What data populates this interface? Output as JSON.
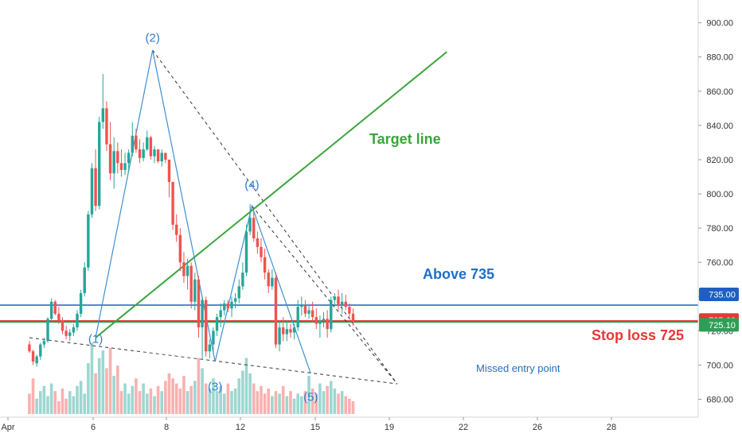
{
  "chart_data": {
    "type": "candlestick",
    "title": "",
    "price_axis": {
      "ticks": [
        "900.00",
        "880.00",
        "860.00",
        "840.00",
        "820.00",
        "800.00",
        "780.00",
        "760.00",
        "740.00",
        "720.00",
        "700.00",
        "680.00"
      ],
      "range": [
        674,
        907
      ]
    },
    "time_axis": {
      "labels": [
        "Apr",
        "6",
        "8",
        "12",
        "15",
        "19",
        "22",
        "26",
        "28"
      ]
    },
    "price_badges": [
      {
        "value": "735.00",
        "color": "#1f5fbf"
      },
      {
        "value": "725.60",
        "color": "#e53935"
      },
      {
        "value": "725.10",
        "color": "#2e9e57"
      }
    ],
    "horizontal_lines": [
      {
        "price": 735.0,
        "color": "#1565c0"
      },
      {
        "price": 725.6,
        "color": "#e53935"
      },
      {
        "price": 725.1,
        "color": "#2e9e57"
      }
    ],
    "wave_labels": [
      {
        "text": "(1)",
        "x": 9,
        "y": 713
      },
      {
        "text": "(2)",
        "x": 24.5,
        "y": 889
      },
      {
        "text": "(3)",
        "x": 41.5,
        "y": 685
      },
      {
        "text": "(4)",
        "x": 51.5,
        "y": 803
      },
      {
        "text": "(5)",
        "x": 67.5,
        "y": 679
      }
    ],
    "wave_path": [
      {
        "x": 9,
        "y": 716
      },
      {
        "x": 24.5,
        "y": 884
      },
      {
        "x": 41.5,
        "y": 702
      },
      {
        "x": 51.5,
        "y": 793
      },
      {
        "x": 67.5,
        "y": 695
      }
    ],
    "annotations": [
      {
        "text": "Target line",
        "color": "#3aa53a"
      },
      {
        "text": "Above 735",
        "color": "#1f6fc4"
      },
      {
        "text": "Stop loss 725",
        "color": "#e53935"
      },
      {
        "text": "Missed entry point",
        "color": "#1f6fc4"
      }
    ],
    "target_line": {
      "x1": 9,
      "y1": 716,
      "x2": 104.5,
      "y2": 883,
      "color": "#3aa53a"
    },
    "trend_lines": [
      {
        "x1": 24.5,
        "y1": 884,
        "x2": 91,
        "y2": 689
      },
      {
        "x1": -9,
        "y1": 716,
        "x2": 91,
        "y2": 689
      }
    ],
    "candles": [
      [
        -9,
        712,
        714,
        707,
        708
      ],
      [
        -8,
        708,
        709,
        700,
        702
      ],
      [
        -7,
        701,
        706,
        699,
        705
      ],
      [
        -6,
        705,
        713,
        703,
        712
      ],
      [
        -5,
        712,
        716,
        710,
        714
      ],
      [
        -4,
        714,
        728,
        713,
        727
      ],
      [
        -3,
        727,
        739,
        725,
        737
      ],
      [
        -2,
        737,
        738,
        729,
        730
      ],
      [
        -1,
        730,
        734,
        724,
        726
      ],
      [
        0,
        726,
        728,
        718,
        720
      ],
      [
        1,
        720,
        723,
        715,
        717
      ],
      [
        2,
        717,
        721,
        714,
        719
      ],
      [
        3,
        719,
        724,
        717,
        722
      ],
      [
        4,
        722,
        732,
        720,
        730
      ],
      [
        5,
        730,
        744,
        728,
        742
      ],
      [
        6,
        742,
        760,
        740,
        757
      ],
      [
        7,
        757,
        790,
        755,
        788
      ],
      [
        8,
        788,
        818,
        786,
        815
      ],
      [
        9,
        815,
        826,
        790,
        793
      ],
      [
        10,
        793,
        845,
        791,
        842
      ],
      [
        11,
        842,
        870,
        838,
        850
      ],
      [
        12,
        850,
        854,
        825,
        829
      ],
      [
        13,
        829,
        842,
        808,
        812
      ],
      [
        14,
        812,
        833,
        803,
        825
      ],
      [
        15,
        825,
        830,
        812,
        818
      ],
      [
        16,
        818,
        826,
        810,
        814
      ],
      [
        17,
        814,
        824,
        811,
        818
      ],
      [
        18,
        818,
        826,
        813,
        824
      ],
      [
        19,
        824,
        842,
        822,
        834
      ],
      [
        20,
        834,
        838,
        824,
        826
      ],
      [
        21,
        826,
        832,
        818,
        821
      ],
      [
        22,
        821,
        830,
        819,
        826
      ],
      [
        23,
        826,
        837,
        825,
        833
      ],
      [
        24,
        833,
        834,
        820,
        822
      ],
      [
        25,
        822,
        828,
        818,
        826
      ],
      [
        26,
        826,
        826,
        818,
        819
      ],
      [
        27,
        819,
        826,
        816,
        824
      ],
      [
        28,
        824,
        824,
        818,
        820
      ],
      [
        29,
        820,
        820,
        798,
        807
      ],
      [
        30,
        807,
        806,
        779,
        782
      ],
      [
        31,
        782,
        788,
        772,
        776
      ],
      [
        32,
        776,
        780,
        755,
        760
      ],
      [
        33,
        760,
        766,
        748,
        752
      ],
      [
        34,
        752,
        762,
        744,
        758
      ],
      [
        35,
        758,
        760,
        733,
        737
      ],
      [
        36,
        737,
        754,
        732,
        750
      ],
      [
        37,
        750,
        752,
        716,
        722
      ],
      [
        38,
        722,
        740,
        703,
        738
      ],
      [
        39,
        738,
        740,
        705,
        708
      ],
      [
        40,
        708,
        715,
        704,
        712
      ],
      [
        41,
        712,
        722,
        707,
        720
      ],
      [
        42,
        720,
        730,
        717,
        728
      ],
      [
        43,
        728,
        736,
        722,
        732
      ],
      [
        44,
        732,
        738,
        729,
        736
      ],
      [
        45,
        736,
        738,
        731,
        733
      ],
      [
        46,
        733,
        740,
        728,
        737
      ],
      [
        47,
        737,
        742,
        733,
        739
      ],
      [
        48,
        739,
        750,
        736,
        746
      ],
      [
        49,
        746,
        760,
        744,
        754
      ],
      [
        50,
        754,
        782,
        752,
        778
      ],
      [
        51,
        778,
        794,
        776,
        786
      ],
      [
        52,
        786,
        790,
        772,
        774
      ],
      [
        53,
        774,
        778,
        765,
        769
      ],
      [
        54,
        769,
        774,
        760,
        763
      ],
      [
        55,
        763,
        768,
        750,
        754
      ],
      [
        56,
        754,
        756,
        742,
        746
      ],
      [
        57,
        746,
        756,
        744,
        751
      ],
      [
        58,
        751,
        754,
        710,
        712
      ],
      [
        59,
        712,
        726,
        708,
        722
      ],
      [
        60,
        722,
        728,
        714,
        718
      ],
      [
        61,
        718,
        726,
        714,
        721
      ],
      [
        62,
        721,
        724,
        716,
        719
      ],
      [
        63,
        719,
        724,
        715,
        722
      ],
      [
        64,
        722,
        738,
        720,
        734
      ],
      [
        65,
        734,
        740,
        729,
        735
      ],
      [
        66,
        735,
        738,
        728,
        730
      ],
      [
        67,
        730,
        735,
        727,
        732
      ],
      [
        68,
        732,
        737,
        725,
        728
      ],
      [
        69,
        728,
        733,
        721,
        724
      ],
      [
        70,
        724,
        729,
        716,
        726
      ],
      [
        71,
        726,
        731,
        722,
        727
      ],
      [
        72,
        727,
        732,
        716,
        721
      ],
      [
        73,
        721,
        740,
        719,
        738
      ],
      [
        74,
        738,
        742,
        735,
        740
      ],
      [
        75,
        740,
        744,
        732,
        735
      ],
      [
        76,
        735,
        742,
        730,
        737
      ],
      [
        77,
        737,
        741,
        732,
        734
      ],
      [
        78,
        734,
        736,
        727,
        730
      ],
      [
        79,
        730,
        733,
        723,
        725
      ]
    ],
    "volumes": [
      [
        -9,
        8
      ],
      [
        -8,
        14
      ],
      [
        -7,
        6
      ],
      [
        -6,
        9
      ],
      [
        -5,
        11
      ],
      [
        -4,
        7
      ],
      [
        -3,
        12
      ],
      [
        -2,
        9
      ],
      [
        -1,
        5
      ],
      [
        0,
        10
      ],
      [
        1,
        6
      ],
      [
        2,
        9
      ],
      [
        3,
        7
      ],
      [
        4,
        11
      ],
      [
        5,
        13
      ],
      [
        6,
        8
      ],
      [
        7,
        20
      ],
      [
        8,
        28
      ],
      [
        9,
        16
      ],
      [
        10,
        22
      ],
      [
        11,
        25
      ],
      [
        12,
        18
      ],
      [
        13,
        26
      ],
      [
        14,
        15
      ],
      [
        15,
        19
      ],
      [
        16,
        9
      ],
      [
        17,
        12
      ],
      [
        18,
        8
      ],
      [
        19,
        11
      ],
      [
        20,
        14
      ],
      [
        21,
        9
      ],
      [
        22,
        12
      ],
      [
        23,
        8
      ],
      [
        24,
        10
      ],
      [
        25,
        7
      ],
      [
        26,
        11
      ],
      [
        27,
        9
      ],
      [
        28,
        13
      ],
      [
        29,
        16
      ],
      [
        30,
        14
      ],
      [
        31,
        12
      ],
      [
        32,
        10
      ],
      [
        33,
        15
      ],
      [
        34,
        9
      ],
      [
        35,
        11
      ],
      [
        36,
        13
      ],
      [
        37,
        22
      ],
      [
        38,
        18
      ],
      [
        39,
        12
      ],
      [
        40,
        10
      ],
      [
        41,
        14
      ],
      [
        42,
        9
      ],
      [
        43,
        11
      ],
      [
        44,
        8
      ],
      [
        45,
        12
      ],
      [
        46,
        9
      ],
      [
        47,
        10
      ],
      [
        48,
        14
      ],
      [
        49,
        17
      ],
      [
        50,
        22
      ],
      [
        51,
        16
      ],
      [
        52,
        12
      ],
      [
        53,
        9
      ],
      [
        54,
        11
      ],
      [
        55,
        8
      ],
      [
        56,
        10
      ],
      [
        57,
        7
      ],
      [
        58,
        9
      ],
      [
        59,
        8
      ],
      [
        60,
        11
      ],
      [
        61,
        7
      ],
      [
        62,
        9
      ],
      [
        63,
        6
      ],
      [
        64,
        8
      ],
      [
        65,
        7
      ],
      [
        66,
        9
      ],
      [
        67,
        15
      ],
      [
        68,
        10
      ],
      [
        69,
        8
      ],
      [
        70,
        12
      ],
      [
        71,
        9
      ],
      [
        72,
        11
      ],
      [
        73,
        13
      ],
      [
        74,
        10
      ],
      [
        75,
        8
      ],
      [
        76,
        9
      ],
      [
        77,
        7
      ],
      [
        78,
        6
      ],
      [
        79,
        5
      ]
    ]
  }
}
